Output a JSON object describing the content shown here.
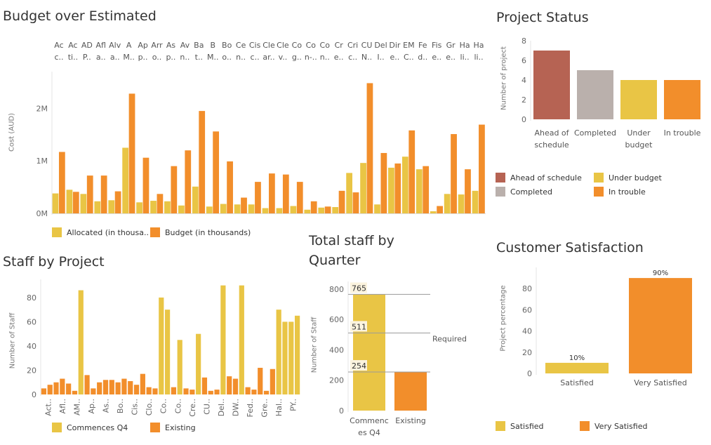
{
  "colors": {
    "allocated": "#e9c545",
    "budget": "#f28e2b",
    "ahead": "#b66353",
    "completed": "#bab0ac",
    "under_budget": "#e9c545",
    "in_trouble": "#f28e2b",
    "band": "#fbf3de",
    "ref_line": "#9a9a9a"
  },
  "chart_data": [
    {
      "id": "budget",
      "type": "bar",
      "title": "Budget over Estimated",
      "ylabel": "Cost (AUD)",
      "ylim": [
        0,
        2700
      ],
      "yticks": [
        {
          "value": 0,
          "label": "0M"
        },
        {
          "value": 1000,
          "label": "1M"
        },
        {
          "value": 2000,
          "label": "2M"
        }
      ],
      "header_labels": [
        [
          "Ac",
          "c.."
        ],
        [
          "Ac",
          "ti.."
        ],
        [
          "AD",
          "P.."
        ],
        [
          "Afl",
          "a.."
        ],
        [
          "Alv",
          "a.."
        ],
        [
          "A",
          "M.."
        ],
        [
          "Ap",
          "p.."
        ],
        [
          "Arr",
          "o.."
        ],
        [
          "As",
          "p.."
        ],
        [
          "Av",
          "n.."
        ],
        [
          "Ba",
          "t.."
        ],
        [
          "B",
          "M.."
        ],
        [
          "Bo",
          "o.."
        ],
        [
          "Ce",
          "n.."
        ],
        [
          "Cis",
          "c.."
        ],
        [
          "Cle",
          "ar.."
        ],
        [
          "Cle",
          "v.."
        ],
        [
          "Co",
          "g.."
        ],
        [
          "Co",
          "n-.."
        ],
        [
          "Co",
          "n.."
        ],
        [
          "Cr",
          "e.."
        ],
        [
          "Cri",
          "c.."
        ],
        [
          "CU",
          "N.."
        ],
        [
          "Del",
          "I.."
        ],
        [
          "Dir",
          "e.."
        ],
        [
          "EM",
          "C.."
        ],
        [
          "Fe",
          "d.."
        ],
        [
          "Fis",
          "e.."
        ],
        [
          "Gr",
          "e.."
        ],
        [
          "Ha",
          "li.."
        ],
        [
          "Ha",
          "li.."
        ]
      ],
      "series": [
        {
          "name": "Allocated (in thousa..",
          "values": [
            380,
            450,
            370,
            230,
            250,
            1250,
            210,
            240,
            230,
            150,
            510,
            130,
            180,
            170,
            170,
            100,
            100,
            140,
            70,
            110,
            120,
            770,
            960,
            170,
            870,
            1080,
            840,
            40,
            370,
            360,
            430
          ]
        },
        {
          "name": "Budget (in thousands)",
          "values": [
            1170,
            410,
            720,
            720,
            420,
            2280,
            1060,
            370,
            900,
            1200,
            1950,
            1560,
            990,
            300,
            600,
            760,
            740,
            600,
            230,
            130,
            430,
            400,
            2480,
            1150,
            950,
            1580,
            900,
            140,
            1510,
            840,
            1690
          ]
        }
      ],
      "legend": [
        "Allocated (in thousa..",
        "Budget (in thousands)"
      ]
    },
    {
      "id": "status",
      "type": "bar",
      "title": "Project Status",
      "ylabel": "Number of project",
      "ylim": [
        0,
        8
      ],
      "yticks": [
        {
          "value": 0,
          "label": "0"
        },
        {
          "value": 2,
          "label": "2"
        },
        {
          "value": 4,
          "label": "4"
        },
        {
          "value": 6,
          "label": "6"
        },
        {
          "value": 8,
          "label": "8"
        }
      ],
      "categories": [
        [
          "Ahead of",
          "schedule"
        ],
        [
          "Completed"
        ],
        [
          "Under",
          "budget"
        ],
        [
          "In trouble"
        ]
      ],
      "values": [
        7,
        5,
        4,
        4
      ],
      "legend": [
        "Ahead of schedule",
        "Under budget",
        "Completed",
        "In trouble"
      ]
    },
    {
      "id": "staff",
      "type": "bar",
      "title": "Staff by Project",
      "ylabel": "Number of Staff",
      "ylim": [
        0,
        95
      ],
      "yticks": [
        {
          "value": 0,
          "label": "0"
        },
        {
          "value": 20,
          "label": "20"
        },
        {
          "value": 40,
          "label": "40"
        },
        {
          "value": 60,
          "label": "60"
        },
        {
          "value": 80,
          "label": "80"
        }
      ],
      "x_labels": [
        "Act..",
        "Afl..",
        "AM..",
        "Ap..",
        "As..",
        "Bo..",
        "Cis..",
        "Clo..",
        "Co..",
        "Co..",
        "Cre..",
        "CU..",
        "Del..",
        "DW..",
        "Fed..",
        "Gre..",
        "Hal..",
        "PY.."
      ],
      "bars": [
        {
          "series": "Existing",
          "value": 5
        },
        {
          "series": "Existing",
          "value": 8
        },
        {
          "series": "Existing",
          "value": 10
        },
        {
          "series": "Existing",
          "value": 13
        },
        {
          "series": "Existing",
          "value": 9
        },
        {
          "series": "Existing",
          "value": 3
        },
        {
          "series": "Commences Q4",
          "value": 86
        },
        {
          "series": "Existing",
          "value": 16
        },
        {
          "series": "Existing",
          "value": 5
        },
        {
          "series": "Existing",
          "value": 10
        },
        {
          "series": "Existing",
          "value": 12
        },
        {
          "series": "Existing",
          "value": 12
        },
        {
          "series": "Existing",
          "value": 10
        },
        {
          "series": "Existing",
          "value": 13
        },
        {
          "series": "Existing",
          "value": 11
        },
        {
          "series": "Existing",
          "value": 8
        },
        {
          "series": "Existing",
          "value": 17
        },
        {
          "series": "Existing",
          "value": 6
        },
        {
          "series": "Existing",
          "value": 5
        },
        {
          "series": "Commences Q4",
          "value": 80
        },
        {
          "series": "Commences Q4",
          "value": 70
        },
        {
          "series": "Existing",
          "value": 6
        },
        {
          "series": "Commences Q4",
          "value": 45
        },
        {
          "series": "Existing",
          "value": 5
        },
        {
          "series": "Existing",
          "value": 4
        },
        {
          "series": "Commences Q4",
          "value": 50
        },
        {
          "series": "Existing",
          "value": 14
        },
        {
          "series": "Existing",
          "value": 3
        },
        {
          "series": "Existing",
          "value": 4
        },
        {
          "series": "Commences Q4",
          "value": 90
        },
        {
          "series": "Existing",
          "value": 15
        },
        {
          "series": "Existing",
          "value": 13
        },
        {
          "series": "Commences Q4",
          "value": 90
        },
        {
          "series": "Existing",
          "value": 6
        },
        {
          "series": "Existing",
          "value": 4
        },
        {
          "series": "Existing",
          "value": 22
        },
        {
          "series": "Existing",
          "value": 3
        },
        {
          "series": "Existing",
          "value": 21
        },
        {
          "series": "Commences Q4",
          "value": 70
        },
        {
          "series": "Commences Q4",
          "value": 60
        },
        {
          "series": "Commences Q4",
          "value": 60
        },
        {
          "series": "Commences Q4",
          "value": 65
        }
      ],
      "legend": [
        "Commences Q4",
        "Existing"
      ]
    },
    {
      "id": "quarter",
      "type": "bar",
      "title": [
        "Total staff by",
        "Quarter"
      ],
      "ylabel": "Number of Staff",
      "ylim": [
        0,
        850
      ],
      "yticks": [
        {
          "value": 0,
          "label": "0"
        },
        {
          "value": 200,
          "label": "200"
        },
        {
          "value": 400,
          "label": "400"
        },
        {
          "value": 600,
          "label": "600"
        },
        {
          "value": 800,
          "label": "800"
        }
      ],
      "categories": [
        [
          "Commenc",
          "es Q4"
        ],
        [
          "Existing"
        ]
      ],
      "values": [
        765,
        254
      ],
      "reference_lines": [
        {
          "value": 765,
          "label": "765"
        },
        {
          "value": 511,
          "label": "511",
          "text": "Required"
        },
        {
          "value": 254,
          "label": "254"
        }
      ]
    },
    {
      "id": "satisfaction",
      "type": "bar",
      "title": "Customer Satisfaction",
      "ylabel": "Project percentage",
      "ylim": [
        0,
        100
      ],
      "yticks": [
        {
          "value": 0,
          "label": "0"
        },
        {
          "value": 20,
          "label": "20"
        },
        {
          "value": 40,
          "label": "40"
        },
        {
          "value": 60,
          "label": "60"
        },
        {
          "value": 80,
          "label": "80"
        }
      ],
      "categories": [
        "Satisfied",
        "Very Satisfied"
      ],
      "values": [
        10,
        90
      ],
      "data_labels": [
        "10%",
        "90%"
      ],
      "legend": [
        "Satisfied",
        "Very Satisfied"
      ]
    }
  ]
}
